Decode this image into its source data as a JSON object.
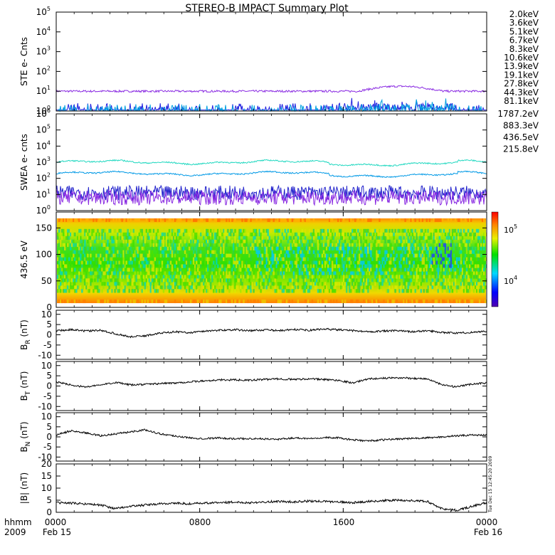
{
  "title": "STEREO-B IMPACT Summary Plot",
  "timestamp": "Tue Dec 15 12:45:20 2009",
  "time_axis": {
    "row1_label": "hhmm",
    "row2_label": "2009",
    "ticks": [
      {
        "hhmm": "0000",
        "date": "Feb 15"
      },
      {
        "hhmm": "0800",
        "date": ""
      },
      {
        "hhmm": "1600",
        "date": ""
      },
      {
        "hhmm": "0000",
        "date": "Feb 16"
      }
    ]
  },
  "chart_data": [
    {
      "type": "line",
      "ylabel": "STE e- Cnts",
      "yscale": "log",
      "ylim_exp": [
        0,
        5
      ],
      "ytick_exponents": [
        0,
        1,
        2,
        3,
        4,
        5
      ],
      "legend": [
        {
          "label": "2.0keV",
          "color": "#8a2be2"
        },
        {
          "label": "3.6keV",
          "color": "#4b0082"
        },
        {
          "label": "5.1keV",
          "color": "#2020e0"
        },
        {
          "label": "6.7keV",
          "color": "#00a0e0"
        },
        {
          "label": "8.3keV",
          "color": "#00d0c0"
        },
        {
          "label": "10.6keV",
          "color": "#00c060"
        },
        {
          "label": "13.9keV",
          "color": "#20c020"
        },
        {
          "label": "19.1keV",
          "color": "#a0d000"
        },
        {
          "label": "27.8keV",
          "color": "#e0c000"
        },
        {
          "label": "44.3keV",
          "color": "#ff8c00"
        },
        {
          "label": "81.1keV",
          "color": "#e02000"
        }
      ],
      "series": [
        {
          "name": "2.0keV",
          "color": "#8a2be2",
          "level": 1.0
        },
        {
          "name": "5.1keV",
          "color": "#2020e0",
          "level": 0.05
        },
        {
          "name": "6.7keV",
          "color": "#00a0e0",
          "level": 0.0
        }
      ]
    },
    {
      "type": "line",
      "ylabel": "SWEA e- cnts",
      "yscale": "log",
      "ylim_exp": [
        0,
        6
      ],
      "ytick_exponents": [
        0,
        1,
        2,
        3,
        4,
        5,
        6
      ],
      "legend": [
        {
          "label": "1787.2eV",
          "color": "#8a2be2"
        },
        {
          "label": "883.3eV",
          "color": "#2020c0"
        },
        {
          "label": "436.5eV",
          "color": "#0090e0"
        },
        {
          "label": "215.8eV",
          "color": "#00c8b0"
        }
      ],
      "series": [
        {
          "name": "215.8eV",
          "color": "#20d8c0",
          "level": 3.0
        },
        {
          "name": "436.5eV",
          "color": "#0099e6",
          "level": 2.3
        },
        {
          "name": "883.3eV",
          "color": "#2222cc",
          "level": 1.1
        },
        {
          "name": "1787.2eV",
          "color": "#8a2be2",
          "level": 0.8
        }
      ]
    },
    {
      "type": "heatmap",
      "ylabel": "436.5 eV",
      "ylim": [
        0,
        180
      ],
      "yticks": [
        0,
        50,
        100,
        150
      ],
      "colorbar_ticks": [
        "10^4",
        "10^5"
      ]
    },
    {
      "type": "line",
      "ylabel": "B_R (nT)",
      "ylim": [
        -12,
        12
      ],
      "yticks": [
        -10,
        -5,
        0,
        5,
        10
      ],
      "approx_values": [
        2,
        2.5,
        1.8,
        2.2,
        0.5,
        -1,
        -0.5,
        0.8,
        1.5,
        1,
        1.8,
        2.2,
        2.5,
        2,
        2.4,
        2,
        2.6,
        2.2,
        2.8,
        2.5,
        2,
        1.5,
        1.8,
        2,
        1.5,
        2,
        1.2,
        0.8,
        1.2,
        1.8
      ]
    },
    {
      "type": "line",
      "ylabel": "B_T (nT)",
      "ylim": [
        -12,
        12
      ],
      "yticks": [
        -10,
        -5,
        0,
        5,
        10
      ],
      "approx_values": [
        2,
        0.5,
        -0.5,
        0.5,
        1.8,
        0.5,
        0.8,
        1.2,
        1.5,
        2,
        2.5,
        3,
        3,
        2.8,
        3.2,
        3.5,
        3.2,
        3.5,
        3.2,
        2.8,
        1.5,
        3.5,
        3.8,
        4,
        3.8,
        3.5,
        0.5,
        -0.5,
        1,
        1.5
      ]
    },
    {
      "type": "line",
      "ylabel": "B_N (nT)",
      "ylim": [
        -12,
        12
      ],
      "yticks": [
        -10,
        -5,
        0,
        5,
        10
      ],
      "approx_values": [
        1,
        3,
        2,
        0.5,
        1.5,
        2.5,
        3.5,
        1.5,
        0.5,
        -0.5,
        -0.8,
        -0.5,
        -1,
        -0.8,
        -1,
        -1.2,
        -0.5,
        -0.8,
        -0.3,
        -0.5,
        -1.5,
        -2,
        -1.5,
        -1,
        -0.8,
        -0.5,
        0,
        0.5,
        1,
        0.8
      ]
    },
    {
      "type": "line",
      "ylabel": "|B| (nT)",
      "ylim": [
        0,
        20
      ],
      "yticks": [
        0,
        5,
        10,
        15,
        20
      ],
      "approx_values": [
        4,
        3.8,
        3.5,
        3,
        1.5,
        2.5,
        3,
        3.5,
        3.8,
        3.5,
        3.8,
        4,
        4.2,
        4,
        4.3,
        4.5,
        4.3,
        4.6,
        4.5,
        4.3,
        4,
        4.5,
        4.8,
        5,
        4.8,
        4.5,
        1.5,
        0.8,
        2.5,
        4
      ]
    }
  ]
}
